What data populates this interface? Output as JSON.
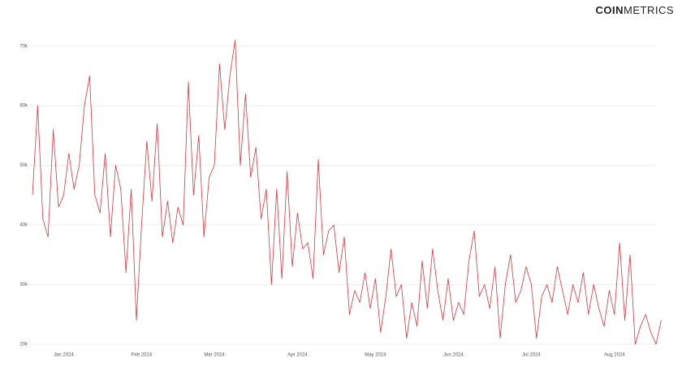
{
  "logo": [
    "COIN",
    "METRICS"
  ],
  "chart_data": {
    "type": "line",
    "categories": [
      null,
      null,
      null,
      null,
      null,
      null,
      "Jan 2024",
      null,
      null,
      null,
      null,
      null,
      null,
      null,
      null,
      null,
      null,
      null,
      null,
      null,
      null,
      "Feb 2024",
      null,
      null,
      null,
      null,
      null,
      null,
      null,
      null,
      null,
      null,
      null,
      null,
      null,
      "Mar 2024",
      null,
      null,
      null,
      null,
      null,
      null,
      null,
      null,
      null,
      null,
      null,
      null,
      null,
      null,
      null,
      "Apr 2024",
      null,
      null,
      null,
      null,
      null,
      null,
      null,
      null,
      null,
      null,
      null,
      null,
      null,
      null,
      "May 2024",
      null,
      null,
      null,
      null,
      null,
      null,
      null,
      null,
      null,
      null,
      null,
      null,
      null,
      null,
      "Jun 2024",
      null,
      null,
      null,
      null,
      null,
      null,
      null,
      null,
      null,
      null,
      null,
      null,
      null,
      null,
      "Jul 2024",
      null,
      null,
      null,
      null,
      null,
      null,
      null,
      null,
      null,
      null,
      null,
      null,
      null,
      null,
      null,
      "Aug 2024",
      null,
      null,
      null,
      null,
      null,
      null,
      null,
      null,
      null
    ],
    "series": [
      {
        "color": "#e0323c",
        "values": [
          45000,
          60000,
          41000,
          38000,
          56000,
          43000,
          45000,
          52000,
          46000,
          50000,
          60000,
          65000,
          45000,
          42000,
          52000,
          38000,
          50000,
          46000,
          32000,
          46000,
          24000,
          40000,
          54000,
          44000,
          57000,
          38000,
          44000,
          37000,
          43000,
          40000,
          64000,
          45000,
          55000,
          38000,
          48000,
          50000,
          67000,
          56000,
          65000,
          71000,
          50000,
          62000,
          48000,
          53000,
          41000,
          46000,
          30000,
          46000,
          31000,
          49000,
          33000,
          42000,
          36000,
          37000,
          31000,
          51000,
          35000,
          39000,
          40000,
          32000,
          38000,
          25000,
          29000,
          27000,
          32000,
          26000,
          31000,
          22000,
          28000,
          36000,
          28000,
          30000,
          21000,
          27000,
          23000,
          34000,
          26000,
          36000,
          29000,
          24000,
          31000,
          24000,
          27000,
          25000,
          34000,
          39000,
          28000,
          30000,
          26000,
          33000,
          21000,
          30000,
          35000,
          27000,
          29000,
          33000,
          30000,
          21000,
          28000,
          30000,
          27000,
          33000,
          29000,
          25000,
          30000,
          27000,
          32000,
          25000,
          30000,
          26000,
          23000,
          29000,
          25000,
          37000,
          24000,
          35000,
          20000,
          23000,
          25000,
          22000,
          20000,
          24000
        ]
      }
    ],
    "ylim": [
      20000,
      72000
    ],
    "yticks": [
      {
        "value": 20000,
        "label": "20k"
      },
      {
        "value": 30000,
        "label": "30k"
      },
      {
        "value": 40000,
        "label": "40k"
      },
      {
        "value": 50000,
        "label": "50k"
      },
      {
        "value": 60000,
        "label": "60k"
      },
      {
        "value": 70000,
        "label": "70k"
      }
    ],
    "grid": true
  }
}
